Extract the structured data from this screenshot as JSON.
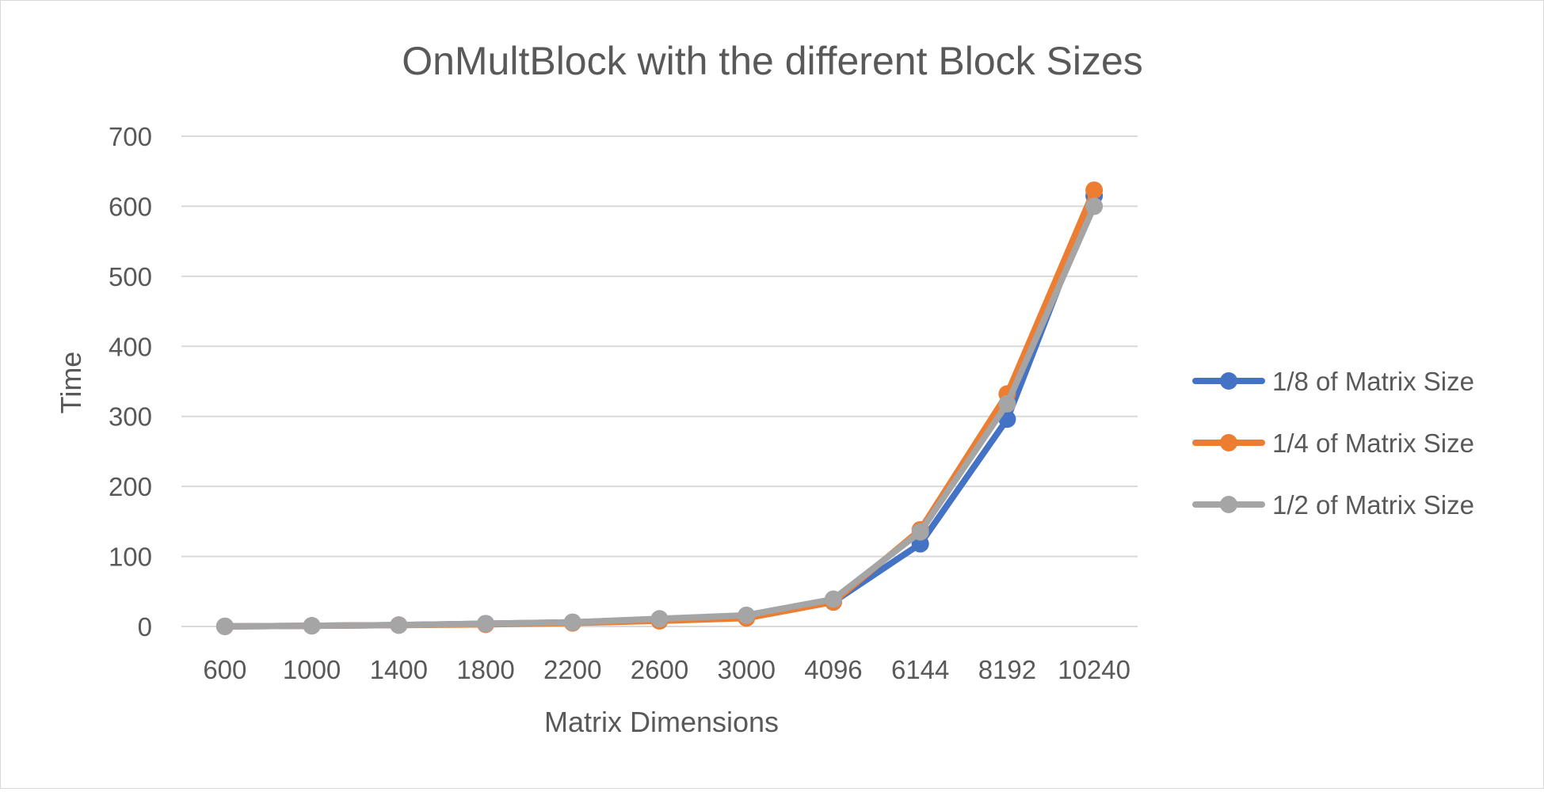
{
  "chart_data": {
    "type": "line",
    "title": "OnMultBlock with the different Block Sizes",
    "xlabel": "Matrix Dimensions",
    "ylabel": "Time",
    "categories": [
      "600",
      "1000",
      "1400",
      "1800",
      "2200",
      "2600",
      "3000",
      "4096",
      "6144",
      "8192",
      "10240"
    ],
    "ylim": [
      0,
      700
    ],
    "yticks": [
      0,
      100,
      200,
      300,
      400,
      500,
      600,
      700
    ],
    "grid": true,
    "legend_position": "right",
    "series": [
      {
        "name": "1/8 of Matrix Size",
        "color": "#4472C4",
        "values": [
          0.2,
          1,
          2,
          4,
          6,
          10,
          15,
          35,
          118,
          296,
          615
        ]
      },
      {
        "name": "1/4 of Matrix Size",
        "color": "#ED7D31",
        "values": [
          0.2,
          1,
          2,
          3,
          5,
          8,
          12,
          35,
          138,
          332,
          623
        ]
      },
      {
        "name": "1/2 of Matrix Size",
        "color": "#A5A5A5",
        "values": [
          0.2,
          1,
          2,
          4,
          6,
          11,
          16,
          39,
          135,
          318,
          600
        ]
      }
    ]
  }
}
